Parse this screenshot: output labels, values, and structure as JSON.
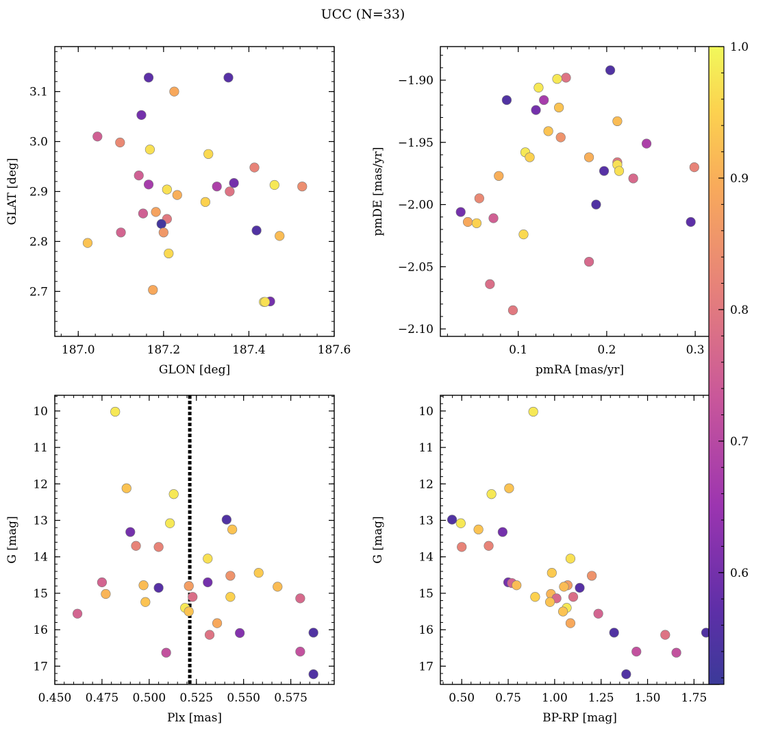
{
  "figure": {
    "title": "UCC (N=33)"
  },
  "colorbar": {
    "range": [
      0.515,
      1.0
    ],
    "ticks": [
      0.6,
      0.7,
      0.8,
      0.9,
      1.0
    ],
    "tick_labels": [
      "0.6",
      "0.7",
      "0.8",
      "0.9",
      "1.0"
    ],
    "colormap": "plasma"
  },
  "chart_data": [
    {
      "type": "scatter",
      "xlabel": "GLON [deg]",
      "ylabel": "GLAT [deg]",
      "xlim": [
        186.945,
        187.6
      ],
      "ylim": [
        2.61,
        3.19
      ],
      "xticks": [
        187.0,
        187.2,
        187.4,
        187.6
      ],
      "xtick_labels": [
        "187.0",
        "187.2",
        "187.4",
        "187.6"
      ],
      "yticks": [
        2.7,
        2.8,
        2.9,
        3.0,
        3.1
      ],
      "ytick_labels": [
        "2.7",
        "2.8",
        "2.9",
        "3.0",
        "3.1"
      ],
      "points": [
        {
          "x": 187.165,
          "y": 3.128,
          "c": 0.57
        },
        {
          "x": 187.352,
          "y": 3.128,
          "c": 0.56
        },
        {
          "x": 187.225,
          "y": 3.1,
          "c": 0.89
        },
        {
          "x": 187.148,
          "y": 3.053,
          "c": 0.6
        },
        {
          "x": 187.045,
          "y": 3.01,
          "c": 0.75
        },
        {
          "x": 187.098,
          "y": 2.998,
          "c": 0.83
        },
        {
          "x": 187.168,
          "y": 2.984,
          "c": 0.97
        },
        {
          "x": 187.305,
          "y": 2.975,
          "c": 0.96
        },
        {
          "x": 187.413,
          "y": 2.948,
          "c": 0.82
        },
        {
          "x": 187.142,
          "y": 2.932,
          "c": 0.75
        },
        {
          "x": 187.365,
          "y": 2.917,
          "c": 0.6
        },
        {
          "x": 187.165,
          "y": 2.914,
          "c": 0.67
        },
        {
          "x": 187.325,
          "y": 2.91,
          "c": 0.68
        },
        {
          "x": 187.46,
          "y": 2.913,
          "c": 0.98
        },
        {
          "x": 187.525,
          "y": 2.91,
          "c": 0.84
        },
        {
          "x": 187.208,
          "y": 2.904,
          "c": 0.97
        },
        {
          "x": 187.355,
          "y": 2.9,
          "c": 0.79
        },
        {
          "x": 187.232,
          "y": 2.893,
          "c": 0.9
        },
        {
          "x": 187.298,
          "y": 2.879,
          "c": 0.95
        },
        {
          "x": 187.182,
          "y": 2.859,
          "c": 0.88
        },
        {
          "x": 187.152,
          "y": 2.856,
          "c": 0.75
        },
        {
          "x": 187.208,
          "y": 2.845,
          "c": 0.8
        },
        {
          "x": 187.195,
          "y": 2.835,
          "c": 0.53
        },
        {
          "x": 187.418,
          "y": 2.822,
          "c": 0.55
        },
        {
          "x": 187.1,
          "y": 2.818,
          "c": 0.76
        },
        {
          "x": 187.2,
          "y": 2.818,
          "c": 0.86
        },
        {
          "x": 187.472,
          "y": 2.811,
          "c": 0.92
        },
        {
          "x": 187.022,
          "y": 2.797,
          "c": 0.93
        },
        {
          "x": 187.212,
          "y": 2.776,
          "c": 0.96
        },
        {
          "x": 187.175,
          "y": 2.703,
          "c": 0.89
        },
        {
          "x": 187.45,
          "y": 2.68,
          "c": 0.6
        },
        {
          "x": 187.435,
          "y": 2.679,
          "c": 0.98
        },
        {
          "x": 187.438,
          "y": 2.679,
          "c": 0.97
        }
      ]
    },
    {
      "type": "scatter",
      "xlabel": "pmRA [mas/yr]",
      "ylabel": "pmDE [mas/yr]",
      "xlim": [
        0.012,
        0.327
      ],
      "ylim": [
        -2.106,
        -1.873
      ],
      "xticks": [
        0.1,
        0.2,
        0.3
      ],
      "xtick_labels": [
        "0.1",
        "0.2",
        "0.3"
      ],
      "yticks": [
        -1.9,
        -1.95,
        -2.0,
        -2.05,
        -2.1
      ],
      "ytick_labels": [
        "−1.90",
        "−1.95",
        "−2.00",
        "−2.05",
        "−2.10"
      ],
      "points": [
        {
          "x": 0.204,
          "y": -1.892,
          "c": 0.55
        },
        {
          "x": 0.154,
          "y": -1.898,
          "c": 0.79
        },
        {
          "x": 0.144,
          "y": -1.899,
          "c": 0.98
        },
        {
          "x": 0.123,
          "y": -1.906,
          "c": 0.98
        },
        {
          "x": 0.087,
          "y": -1.916,
          "c": 0.55
        },
        {
          "x": 0.129,
          "y": -1.916,
          "c": 0.67
        },
        {
          "x": 0.12,
          "y": -1.924,
          "c": 0.6
        },
        {
          "x": 0.146,
          "y": -1.922,
          "c": 0.93
        },
        {
          "x": 0.212,
          "y": -1.933,
          "c": 0.92
        },
        {
          "x": 0.134,
          "y": -1.941,
          "c": 0.93
        },
        {
          "x": 0.148,
          "y": -1.946,
          "c": 0.85
        },
        {
          "x": 0.245,
          "y": -1.951,
          "c": 0.68
        },
        {
          "x": 0.108,
          "y": -1.958,
          "c": 0.98
        },
        {
          "x": 0.113,
          "y": -1.962,
          "c": 0.95
        },
        {
          "x": 0.18,
          "y": -1.962,
          "c": 0.9
        },
        {
          "x": 0.212,
          "y": -1.966,
          "c": 0.8
        },
        {
          "x": 0.212,
          "y": -1.968,
          "c": 0.97
        },
        {
          "x": 0.299,
          "y": -1.97,
          "c": 0.82
        },
        {
          "x": 0.214,
          "y": -1.973,
          "c": 0.97
        },
        {
          "x": 0.197,
          "y": -1.973,
          "c": 0.56
        },
        {
          "x": 0.078,
          "y": -1.977,
          "c": 0.9
        },
        {
          "x": 0.23,
          "y": -1.979,
          "c": 0.77
        },
        {
          "x": 0.056,
          "y": -1.995,
          "c": 0.83
        },
        {
          "x": 0.188,
          "y": -2.0,
          "c": 0.55
        },
        {
          "x": 0.035,
          "y": -2.006,
          "c": 0.6
        },
        {
          "x": 0.072,
          "y": -2.011,
          "c": 0.75
        },
        {
          "x": 0.043,
          "y": -2.014,
          "c": 0.89
        },
        {
          "x": 0.295,
          "y": -2.014,
          "c": 0.57
        },
        {
          "x": 0.053,
          "y": -2.015,
          "c": 0.95
        },
        {
          "x": 0.106,
          "y": -2.024,
          "c": 0.96
        },
        {
          "x": 0.18,
          "y": -2.046,
          "c": 0.77
        },
        {
          "x": 0.068,
          "y": -2.064,
          "c": 0.78
        },
        {
          "x": 0.094,
          "y": -2.085,
          "c": 0.8
        }
      ]
    },
    {
      "type": "scatter",
      "xlabel": "Plx [mas]",
      "ylabel": "G [mag]",
      "xlim": [
        0.45,
        0.598
      ],
      "ylim": [
        17.5,
        9.57
      ],
      "y_inverted": true,
      "xticks": [
        0.45,
        0.475,
        0.5,
        0.525,
        0.55,
        0.575
      ],
      "xtick_labels": [
        "0.450",
        "0.475",
        "0.500",
        "0.525",
        "0.550",
        "0.575"
      ],
      "yticks": [
        10,
        11,
        12,
        13,
        14,
        15,
        16,
        17
      ],
      "ytick_labels": [
        "10",
        "11",
        "12",
        "13",
        "14",
        "15",
        "16",
        "17"
      ],
      "vline": {
        "x": 0.5215,
        "style": "dotted"
      },
      "points": [
        {
          "x": 0.482,
          "y": 10.02,
          "c": 0.98
        },
        {
          "x": 0.488,
          "y": 12.12,
          "c": 0.93
        },
        {
          "x": 0.513,
          "y": 12.28,
          "c": 0.98
        },
        {
          "x": 0.511,
          "y": 13.08,
          "c": 0.98
        },
        {
          "x": 0.541,
          "y": 12.98,
          "c": 0.55
        },
        {
          "x": 0.544,
          "y": 13.25,
          "c": 0.93
        },
        {
          "x": 0.49,
          "y": 13.32,
          "c": 0.6
        },
        {
          "x": 0.493,
          "y": 13.7,
          "c": 0.82
        },
        {
          "x": 0.505,
          "y": 13.73,
          "c": 0.82
        },
        {
          "x": 0.531,
          "y": 14.05,
          "c": 0.97
        },
        {
          "x": 0.558,
          "y": 14.44,
          "c": 0.94
        },
        {
          "x": 0.543,
          "y": 14.52,
          "c": 0.85
        },
        {
          "x": 0.475,
          "y": 14.7,
          "c": 0.76
        },
        {
          "x": 0.531,
          "y": 14.7,
          "c": 0.6
        },
        {
          "x": 0.497,
          "y": 14.78,
          "c": 0.92
        },
        {
          "x": 0.521,
          "y": 14.8,
          "c": 0.87
        },
        {
          "x": 0.568,
          "y": 14.82,
          "c": 0.92
        },
        {
          "x": 0.505,
          "y": 14.85,
          "c": 0.56
        },
        {
          "x": 0.477,
          "y": 15.02,
          "c": 0.91
        },
        {
          "x": 0.523,
          "y": 15.1,
          "c": 0.78
        },
        {
          "x": 0.543,
          "y": 15.1,
          "c": 0.95
        },
        {
          "x": 0.58,
          "y": 15.14,
          "c": 0.77
        },
        {
          "x": 0.498,
          "y": 15.24,
          "c": 0.93
        },
        {
          "x": 0.519,
          "y": 15.4,
          "c": 0.98
        },
        {
          "x": 0.521,
          "y": 15.5,
          "c": 0.93
        },
        {
          "x": 0.462,
          "y": 15.56,
          "c": 0.76
        },
        {
          "x": 0.536,
          "y": 15.82,
          "c": 0.89
        },
        {
          "x": 0.587,
          "y": 16.08,
          "c": 0.55
        },
        {
          "x": 0.548,
          "y": 16.09,
          "c": 0.62
        },
        {
          "x": 0.532,
          "y": 16.14,
          "c": 0.79
        },
        {
          "x": 0.58,
          "y": 16.6,
          "c": 0.72
        },
        {
          "x": 0.509,
          "y": 16.63,
          "c": 0.72
        },
        {
          "x": 0.587,
          "y": 17.22,
          "c": 0.55
        }
      ]
    },
    {
      "type": "scatter",
      "xlabel": "BP-RP [mag]",
      "ylabel": "G [mag]",
      "xlim": [
        0.385,
        1.885
      ],
      "ylim": [
        17.5,
        9.57
      ],
      "y_inverted": true,
      "xticks": [
        0.5,
        0.75,
        1.0,
        1.25,
        1.5,
        1.75
      ],
      "xtick_labels": [
        "0.50",
        "0.75",
        "1.00",
        "1.25",
        "1.50",
        "1.75"
      ],
      "yticks": [
        10,
        11,
        12,
        13,
        14,
        15,
        16,
        17
      ],
      "ytick_labels": [
        "10",
        "11",
        "12",
        "13",
        "14",
        "15",
        "16",
        "17"
      ],
      "points": [
        {
          "x": 0.885,
          "y": 10.02,
          "c": 0.98
        },
        {
          "x": 0.755,
          "y": 12.12,
          "c": 0.93
        },
        {
          "x": 0.66,
          "y": 12.28,
          "c": 0.98
        },
        {
          "x": 0.448,
          "y": 12.98,
          "c": 0.55
        },
        {
          "x": 0.495,
          "y": 13.08,
          "c": 0.98
        },
        {
          "x": 0.59,
          "y": 13.25,
          "c": 0.93
        },
        {
          "x": 0.72,
          "y": 13.32,
          "c": 0.6
        },
        {
          "x": 0.5,
          "y": 13.73,
          "c": 0.82
        },
        {
          "x": 0.645,
          "y": 13.7,
          "c": 0.82
        },
        {
          "x": 1.085,
          "y": 14.05,
          "c": 0.97
        },
        {
          "x": 0.985,
          "y": 14.44,
          "c": 0.94
        },
        {
          "x": 1.2,
          "y": 14.52,
          "c": 0.85
        },
        {
          "x": 0.75,
          "y": 14.7,
          "c": 0.6
        },
        {
          "x": 0.77,
          "y": 14.72,
          "c": 0.76
        },
        {
          "x": 0.795,
          "y": 14.78,
          "c": 0.92
        },
        {
          "x": 1.07,
          "y": 14.78,
          "c": 0.87
        },
        {
          "x": 1.05,
          "y": 14.82,
          "c": 0.92
        },
        {
          "x": 1.135,
          "y": 14.85,
          "c": 0.56
        },
        {
          "x": 0.98,
          "y": 15.02,
          "c": 0.91
        },
        {
          "x": 0.895,
          "y": 15.1,
          "c": 0.95
        },
        {
          "x": 1.01,
          "y": 15.14,
          "c": 0.77
        },
        {
          "x": 1.1,
          "y": 15.1,
          "c": 0.78
        },
        {
          "x": 0.975,
          "y": 15.24,
          "c": 0.93
        },
        {
          "x": 1.065,
          "y": 15.4,
          "c": 0.98
        },
        {
          "x": 1.045,
          "y": 15.5,
          "c": 0.93
        },
        {
          "x": 1.235,
          "y": 15.56,
          "c": 0.76
        },
        {
          "x": 1.085,
          "y": 15.82,
          "c": 0.89
        },
        {
          "x": 1.32,
          "y": 16.08,
          "c": 0.55
        },
        {
          "x": 1.815,
          "y": 16.08,
          "c": 0.55
        },
        {
          "x": 1.595,
          "y": 16.14,
          "c": 0.79
        },
        {
          "x": 1.44,
          "y": 16.6,
          "c": 0.72
        },
        {
          "x": 1.655,
          "y": 16.63,
          "c": 0.72
        },
        {
          "x": 1.385,
          "y": 17.22,
          "c": 0.55
        }
      ]
    }
  ]
}
